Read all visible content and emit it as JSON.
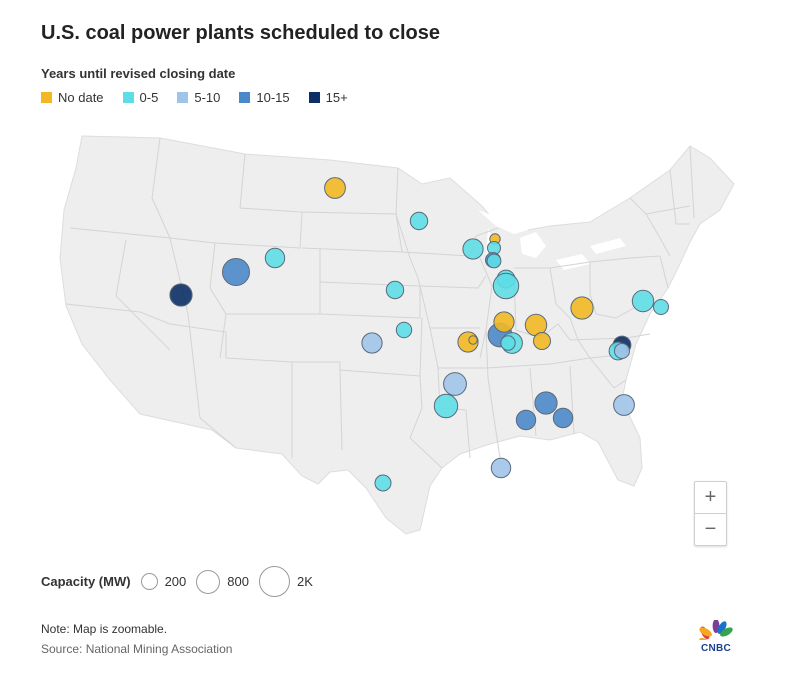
{
  "title": "U.S. coal power plants scheduled to close",
  "legend": {
    "title": "Years until revised closing date",
    "categories": [
      {
        "key": "nodate",
        "label": "No date",
        "color": "#f2b824"
      },
      {
        "key": "c0_5",
        "label": "0-5",
        "color": "#5ddde6"
      },
      {
        "key": "c5_10",
        "label": "5-10",
        "color": "#a0c4e8"
      },
      {
        "key": "c10_15",
        "label": "10-15",
        "color": "#4b88c9"
      },
      {
        "key": "c15",
        "label": "15+",
        "color": "#0b2f66"
      }
    ]
  },
  "capacity": {
    "title": "Capacity (MW)",
    "items": [
      {
        "label": "200",
        "mw": 200
      },
      {
        "label": "800",
        "mw": 800
      },
      {
        "label": "2K",
        "mw": 2000
      }
    ]
  },
  "zoom": {
    "in": "+",
    "out": "−"
  },
  "note": "Note: Map is zoomable.",
  "source": "Source: National Mining Association",
  "logo": "CNBC",
  "plants": [
    {
      "state": "ND",
      "cat": "nodate",
      "mw": 1100
    },
    {
      "state": "MN",
      "cat": "c0_5",
      "mw": 650
    },
    {
      "state": "WY",
      "cat": "c0_5",
      "mw": 900
    },
    {
      "state": "WY",
      "cat": "c10_15",
      "mw": 2200
    },
    {
      "state": "UT",
      "cat": "c15",
      "mw": 1300
    },
    {
      "state": "NE",
      "cat": "c0_5",
      "mw": 650
    },
    {
      "state": "KS",
      "cat": "c0_5",
      "mw": 450
    },
    {
      "state": "KS",
      "cat": "c5_10",
      "mw": 1000
    },
    {
      "state": "WI",
      "cat": "nodate",
      "mw": 100
    },
    {
      "state": "WI",
      "cat": "c0_5",
      "mw": 250
    },
    {
      "state": "WI",
      "cat": "c0_5",
      "mw": 1000
    },
    {
      "state": "WI",
      "cat": "c10_15",
      "mw": 400
    },
    {
      "state": "WI",
      "cat": "c0_5",
      "mw": 300
    },
    {
      "state": "IL",
      "cat": "c0_5",
      "mw": 700
    },
    {
      "state": "IL",
      "cat": "c0_5",
      "mw": 1900
    },
    {
      "state": "IL",
      "cat": "c10_15",
      "mw": 1600
    },
    {
      "state": "IN",
      "cat": "c0_5",
      "mw": 1100
    },
    {
      "state": "IN",
      "cat": "nodate",
      "mw": 1000
    },
    {
      "state": "IN",
      "cat": "c0_5",
      "mw": 350
    },
    {
      "state": "MO",
      "cat": "nodate",
      "mw": 1000
    },
    {
      "state": "MO",
      "cat": "nodate",
      "mw": 30
    },
    {
      "state": "KY",
      "cat": "nodate",
      "mw": 1200
    },
    {
      "state": "KY",
      "cat": "nodate",
      "mw": 600
    },
    {
      "state": "OH",
      "cat": "nodate",
      "mw": 1300
    },
    {
      "state": "PA",
      "cat": "c0_5",
      "mw": 1200
    },
    {
      "state": "NJ",
      "cat": "c0_5",
      "mw": 400
    },
    {
      "state": "VA",
      "cat": "c15",
      "mw": 700
    },
    {
      "state": "VA",
      "cat": "c0_5",
      "mw": 700
    },
    {
      "state": "VA",
      "cat": "c5_10",
      "mw": 400
    },
    {
      "state": "AR",
      "cat": "c5_10",
      "mw": 1400
    },
    {
      "state": "AR",
      "cat": "c0_5",
      "mw": 1500
    },
    {
      "state": "AL",
      "cat": "c10_15",
      "mw": 1300
    },
    {
      "state": "AL",
      "cat": "c10_15",
      "mw": 900
    },
    {
      "state": "GA",
      "cat": "c10_15",
      "mw": 900
    },
    {
      "state": "SC",
      "cat": "c5_10",
      "mw": 1100
    },
    {
      "state": "MS",
      "cat": "c5_10",
      "mw": 900
    },
    {
      "state": "TX",
      "cat": "c0_5",
      "mw": 500
    }
  ]
}
